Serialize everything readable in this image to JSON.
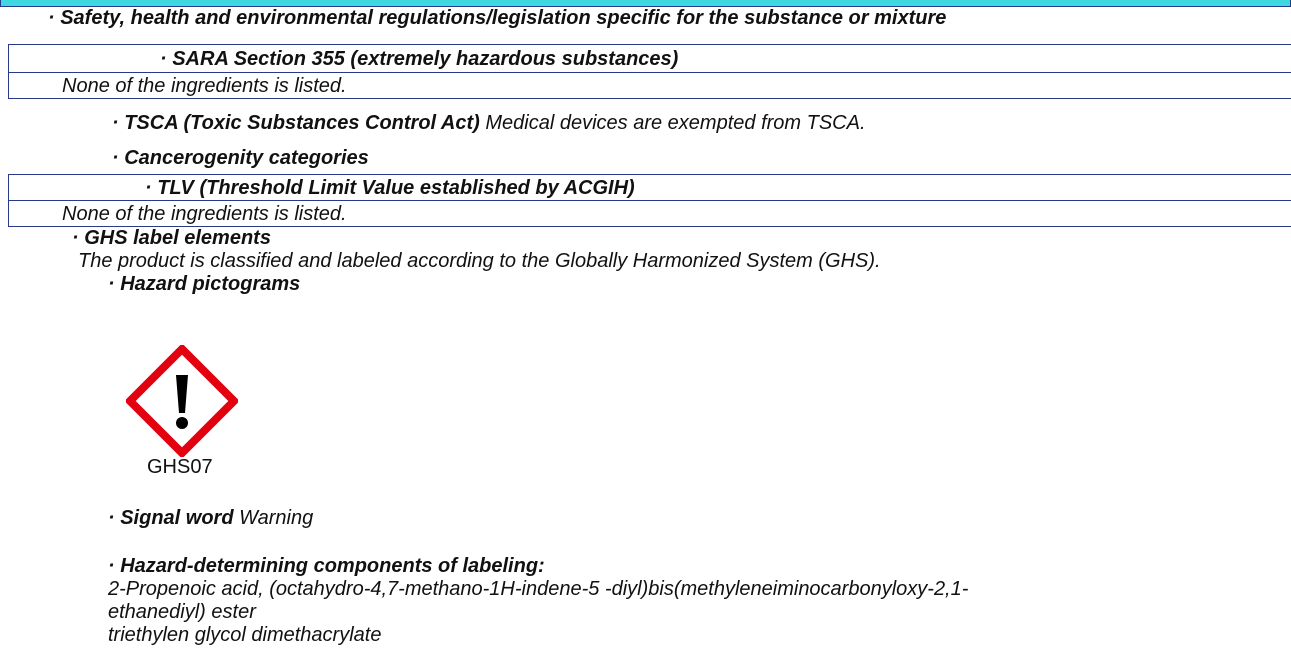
{
  "regulations": {
    "heading": "· Safety, health and environmental regulations/legislation specific for the substance or mixture",
    "sara": {
      "title": "· SARA Section 355 (extremely hazardous substances)",
      "text": "None of the ingredients is listed."
    },
    "tsca": {
      "title": "· TSCA (Toxic Substances Control Act)",
      "text": "Medical devices are exempted from TSCA."
    },
    "cancerogenity": {
      "title": "· Cancerogenity categories"
    },
    "tlv": {
      "title": "· TLV (Threshold Limit Value established by ACGIH)",
      "text": "None of the ingredients is listed."
    }
  },
  "ghs": {
    "title": "· GHS label elements",
    "text": "The product is classified and labeled according to the Globally Harmonized System (GHS).",
    "pictograms_title": "· Hazard pictograms",
    "pictogram_label": "GHS07",
    "signal_word_title": "· Signal word",
    "signal_word": "Warning",
    "components_title": "· Hazard-determining components of labeling:",
    "components": [
      "2-Propenoic acid, (octahydro-4,7-methano-1H-indene-5 -diyl)bis(methyleneiminocarbonyloxy-2,1-",
      "ethanediyl) ester",
      "triethylen glycol dimethacrylate"
    ]
  }
}
